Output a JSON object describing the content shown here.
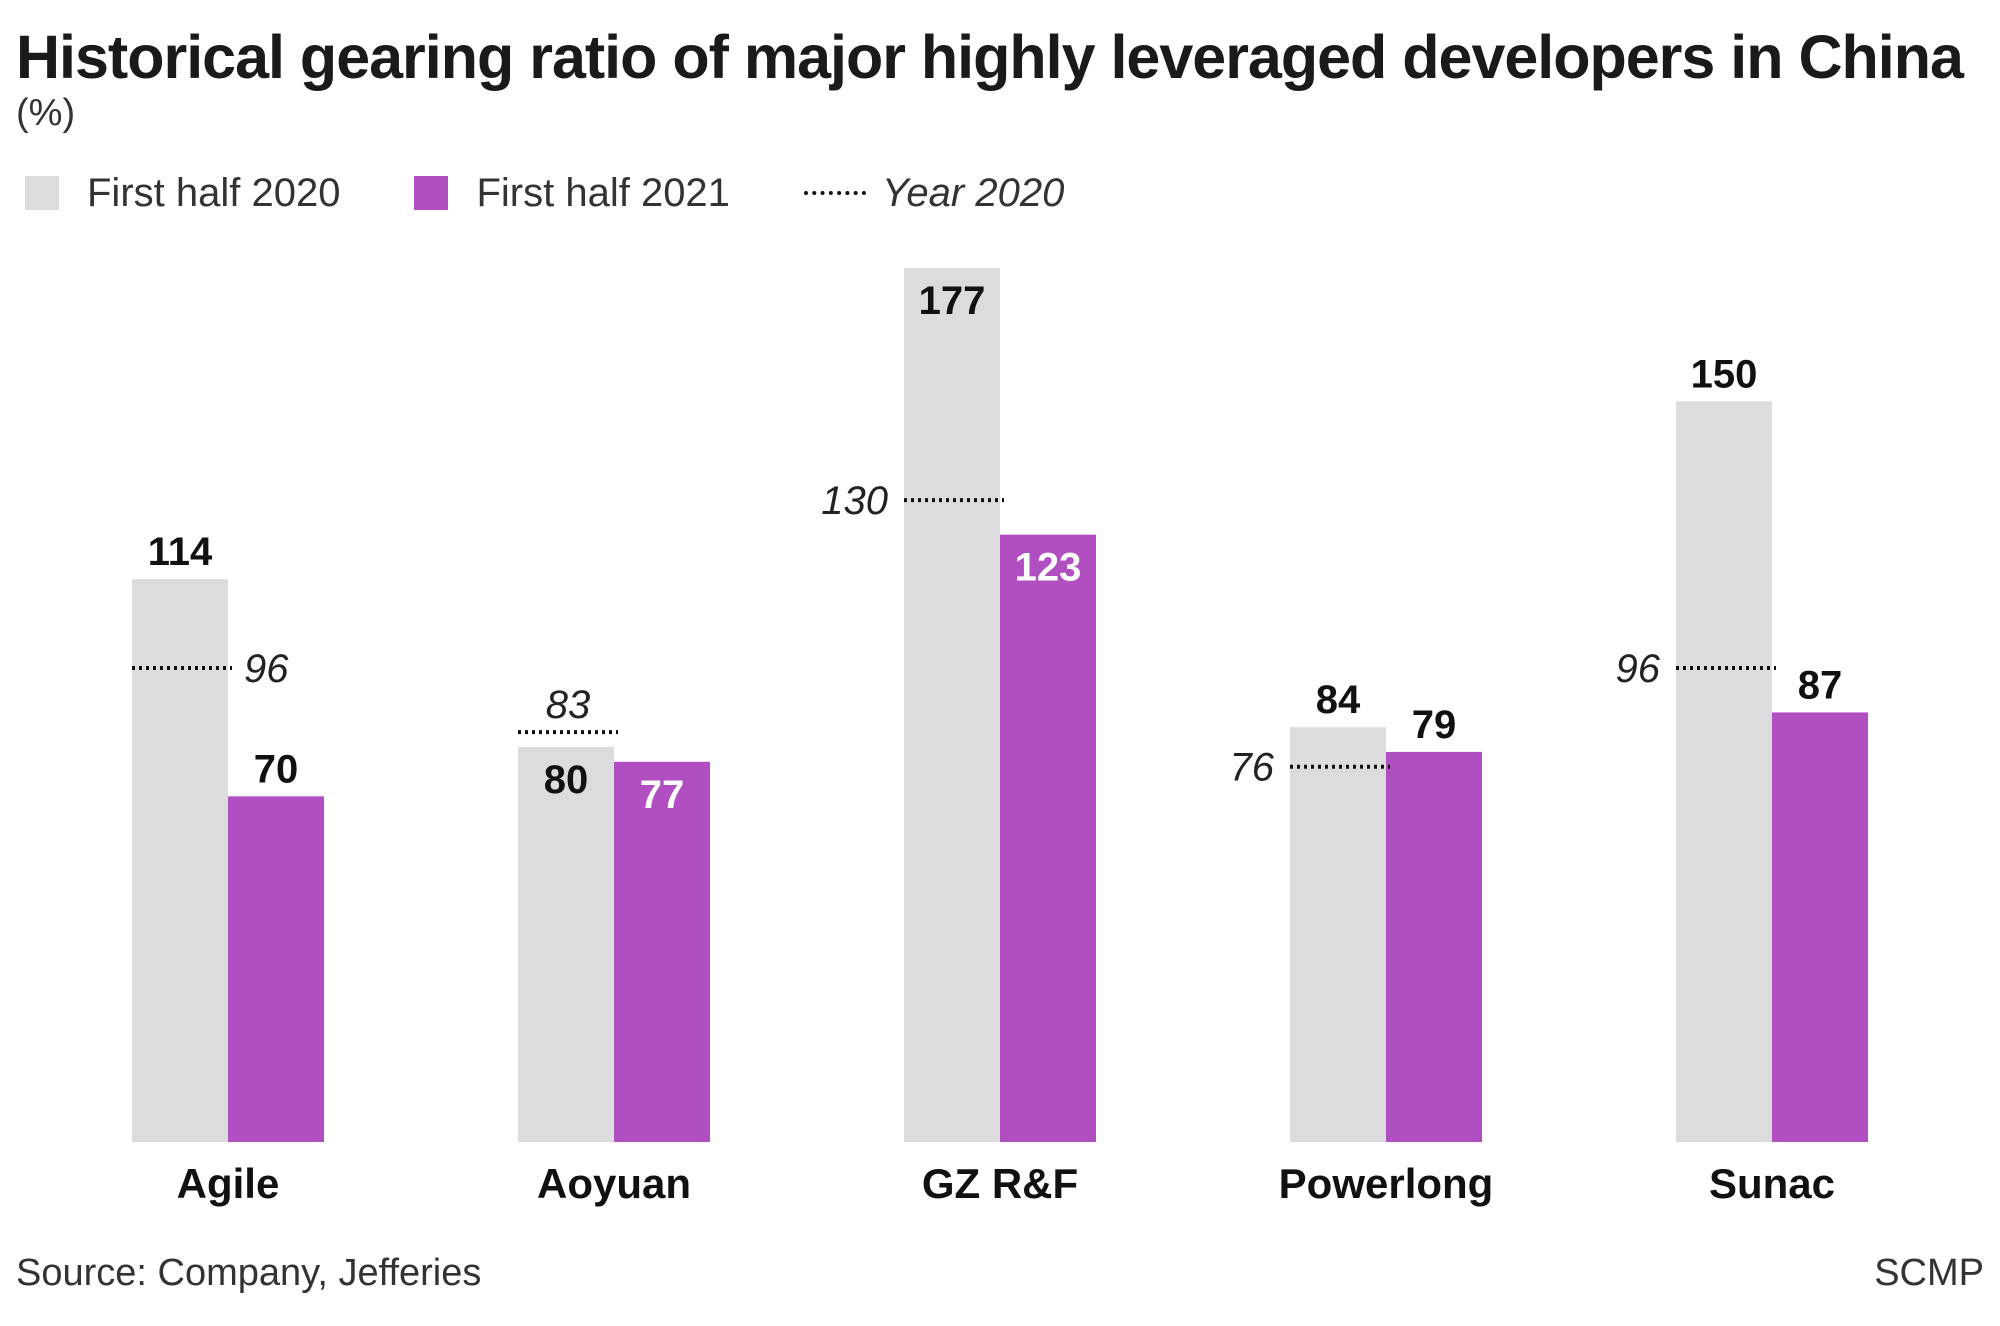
{
  "header": {
    "title": "Historical gearing ratio of major highly leveraged developers in China",
    "unit": "(%)"
  },
  "legend": {
    "h1_2020": "First half 2020",
    "h1_2021": "First half 2021",
    "year_2020": "Year 2020"
  },
  "colors": {
    "h1_2020": "#dcdcde",
    "h1_2021": "#b04ec2",
    "text": "#111111"
  },
  "chart_data": {
    "type": "bar",
    "categories": [
      "Agile",
      "Aoyuan",
      "GZ R&F",
      "Powerlong",
      "Sunac"
    ],
    "series": [
      {
        "name": "First half 2020",
        "values": [
          114,
          80,
          177,
          84,
          150
        ]
      },
      {
        "name": "First half 2021",
        "values": [
          70,
          77,
          123,
          79,
          87
        ]
      }
    ],
    "markers": {
      "name": "Year 2020",
      "values": [
        96,
        83,
        130,
        76,
        96
      ]
    },
    "ylim": [
      0,
      177
    ],
    "grid": false,
    "legend_position": "top-left"
  },
  "footer": {
    "source": "Source: Company, Jefferies",
    "credit": "SCMP"
  }
}
